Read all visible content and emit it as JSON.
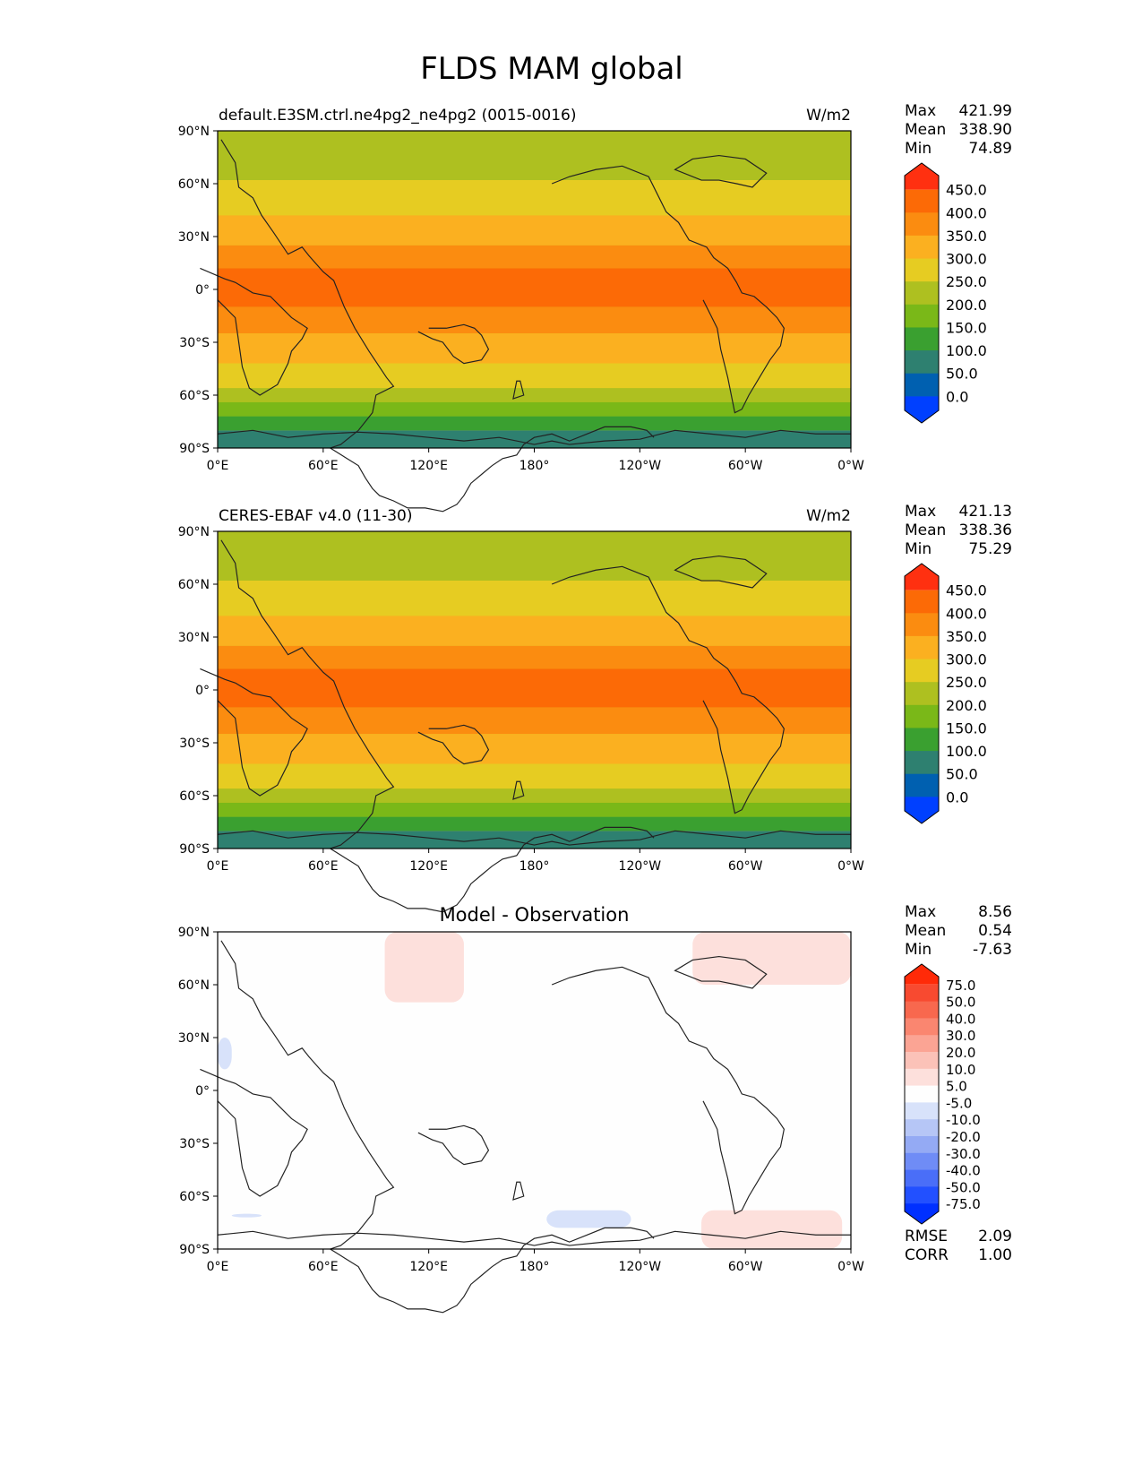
{
  "figure_title": "FLDS MAM global",
  "lat_ticks": [
    "90°N",
    "60°N",
    "30°N",
    "0°",
    "30°S",
    "60°S",
    "90°S"
  ],
  "lon_ticks": [
    "0°E",
    "60°E",
    "120°E",
    "180°",
    "120°W",
    "60°W",
    "0°W"
  ],
  "chart_data": [
    {
      "type": "heatmap",
      "title": "default.E3SM.ctrl.ne4pg2_ne4pg2 (0015-0016)",
      "units": "W/m2",
      "x": "longitude",
      "y": "latitude",
      "xlim": [
        0,
        360
      ],
      "ylim": [
        -90,
        90
      ],
      "stats": {
        "Max": "421.99",
        "Mean": "338.90",
        "Min": "74.89"
      },
      "colorbar": {
        "levels": [
          0,
          50,
          100,
          150,
          200,
          250,
          300,
          350,
          400,
          450
        ],
        "labels": [
          "450.0",
          "400.0",
          "350.0",
          "300.0",
          "250.0",
          "200.0",
          "150.0",
          "100.0",
          "50.0",
          "0.0"
        ],
        "colors": [
          "#0040ff",
          "#0060b0",
          "#2e8070",
          "#3aa030",
          "#7ab818",
          "#aec020",
          "#e6cc22",
          "#fbb020",
          "#fb8c10",
          "#fc6a06",
          "#ff3010"
        ]
      },
      "zonal_profile": [
        {
          "lat_from": 90,
          "lat_to": 75,
          "band": 5
        },
        {
          "lat_from": 75,
          "lat_to": 62,
          "band": 5
        },
        {
          "lat_from": 62,
          "lat_to": 42,
          "band": 6
        },
        {
          "lat_from": 42,
          "lat_to": 25,
          "band": 7
        },
        {
          "lat_from": 25,
          "lat_to": 12,
          "band": 8
        },
        {
          "lat_from": 12,
          "lat_to": -10,
          "band": 9
        },
        {
          "lat_from": -10,
          "lat_to": -25,
          "band": 8
        },
        {
          "lat_from": -25,
          "lat_to": -42,
          "band": 7
        },
        {
          "lat_from": -42,
          "lat_to": -56,
          "band": 6
        },
        {
          "lat_from": -56,
          "lat_to": -64,
          "band": 5
        },
        {
          "lat_from": -64,
          "lat_to": -72,
          "band": 4
        },
        {
          "lat_from": -72,
          "lat_to": -80,
          "band": 3
        },
        {
          "lat_from": -80,
          "lat_to": -90,
          "band": 2
        }
      ]
    },
    {
      "type": "heatmap",
      "title": "CERES-EBAF v4.0 (11-30)",
      "units": "W/m2",
      "x": "longitude",
      "y": "latitude",
      "xlim": [
        0,
        360
      ],
      "ylim": [
        -90,
        90
      ],
      "stats": {
        "Max": "421.13",
        "Mean": "338.36",
        "Min": "75.29"
      },
      "colorbar": {
        "levels": [
          0,
          50,
          100,
          150,
          200,
          250,
          300,
          350,
          400,
          450
        ],
        "labels": [
          "450.0",
          "400.0",
          "350.0",
          "300.0",
          "250.0",
          "200.0",
          "150.0",
          "100.0",
          "50.0",
          "0.0"
        ],
        "colors": [
          "#0040ff",
          "#0060b0",
          "#2e8070",
          "#3aa030",
          "#7ab818",
          "#aec020",
          "#e6cc22",
          "#fbb020",
          "#fb8c10",
          "#fc6a06",
          "#ff3010"
        ]
      },
      "zonal_profile": [
        {
          "lat_from": 90,
          "lat_to": 75,
          "band": 5
        },
        {
          "lat_from": 75,
          "lat_to": 62,
          "band": 5
        },
        {
          "lat_from": 62,
          "lat_to": 42,
          "band": 6
        },
        {
          "lat_from": 42,
          "lat_to": 25,
          "band": 7
        },
        {
          "lat_from": 25,
          "lat_to": 12,
          "band": 8
        },
        {
          "lat_from": 12,
          "lat_to": -10,
          "band": 9
        },
        {
          "lat_from": -10,
          "lat_to": -25,
          "band": 8
        },
        {
          "lat_from": -25,
          "lat_to": -42,
          "band": 7
        },
        {
          "lat_from": -42,
          "lat_to": -56,
          "band": 6
        },
        {
          "lat_from": -56,
          "lat_to": -64,
          "band": 5
        },
        {
          "lat_from": -64,
          "lat_to": -72,
          "band": 4
        },
        {
          "lat_from": -72,
          "lat_to": -80,
          "band": 3
        },
        {
          "lat_from": -80,
          "lat_to": -90,
          "band": 2
        }
      ]
    },
    {
      "type": "heatmap",
      "title": "Model - Observation",
      "x": "longitude",
      "y": "latitude",
      "xlim": [
        0,
        360
      ],
      "ylim": [
        -90,
        90
      ],
      "stats": {
        "Max": "8.56",
        "Mean": "0.54",
        "Min": "-7.63"
      },
      "metrics": {
        "RMSE": "2.09",
        "CORR": "1.00"
      },
      "colorbar": {
        "levels": [
          -75,
          -50,
          -40,
          -30,
          -20,
          -10,
          -5,
          5,
          10,
          20,
          30,
          40,
          50,
          75
        ],
        "labels": [
          "75.0",
          "50.0",
          "40.0",
          "30.0",
          "20.0",
          "10.0",
          "5.0",
          "-5.0",
          "-10.0",
          "-20.0",
          "-30.0",
          "-40.0",
          "-50.0",
          "-75.0"
        ],
        "colors": [
          "#0030ff",
          "#2250ff",
          "#4a6ef8",
          "#6f8cf6",
          "#94aaf4",
          "#b6c6f6",
          "#d8e2fa",
          "#fefefe",
          "#fde0dc",
          "#fbc2b8",
          "#fba494",
          "#fa8670",
          "#f8684e",
          "#f84a30",
          "#ff2a08"
        ]
      },
      "difference_regions": [
        {
          "level": "5.0 to 10.0",
          "lon": [
            95,
            140
          ],
          "lat": [
            50,
            90
          ]
        },
        {
          "level": "5.0 to 10.0",
          "lon": [
            270,
            360
          ],
          "lat": [
            60,
            90
          ]
        },
        {
          "level": "5.0 to 10.0",
          "lon": [
            275,
            355
          ],
          "lat": [
            -90,
            -68
          ]
        },
        {
          "level": "-10.0 to -5.0",
          "lon": [
            0,
            8
          ],
          "lat": [
            12,
            30
          ]
        },
        {
          "level": "-10.0 to -5.0",
          "lon": [
            187,
            235
          ],
          "lat": [
            -78,
            -68
          ]
        },
        {
          "level": "-10.0 to -5.0",
          "lon": [
            8,
            25
          ],
          "lat": [
            -72,
            -70
          ]
        }
      ]
    }
  ]
}
